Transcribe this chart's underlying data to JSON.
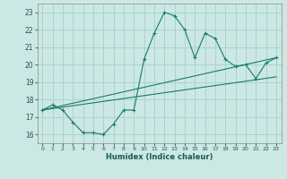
{
  "xlabel": "Humidex (Indice chaleur)",
  "bg_color": "#cce8e4",
  "line_color": "#1a7a6e",
  "grid_color": "#a8d4cf",
  "xlim": [
    -0.5,
    23.5
  ],
  "ylim": [
    15.5,
    23.5
  ],
  "xticks": [
    0,
    1,
    2,
    3,
    4,
    5,
    6,
    7,
    8,
    9,
    10,
    11,
    12,
    13,
    14,
    15,
    16,
    17,
    18,
    19,
    20,
    21,
    22,
    23
  ],
  "yticks": [
    16,
    17,
    18,
    19,
    20,
    21,
    22,
    23
  ],
  "main_x": [
    0,
    1,
    2,
    3,
    4,
    5,
    6,
    7,
    8,
    9,
    10,
    11,
    12,
    13,
    14,
    15,
    16,
    17,
    18,
    19,
    20,
    21,
    22,
    23
  ],
  "main_y": [
    17.4,
    17.7,
    17.4,
    16.7,
    16.1,
    16.1,
    16.0,
    16.6,
    17.4,
    17.4,
    20.3,
    21.8,
    23.0,
    22.8,
    22.0,
    20.4,
    21.8,
    21.5,
    20.3,
    19.9,
    20.0,
    19.2,
    20.1,
    20.4
  ],
  "line1_x": [
    0,
    23
  ],
  "line1_y": [
    17.4,
    19.3
  ],
  "line2_x": [
    0,
    23
  ],
  "line2_y": [
    17.4,
    20.4
  ]
}
